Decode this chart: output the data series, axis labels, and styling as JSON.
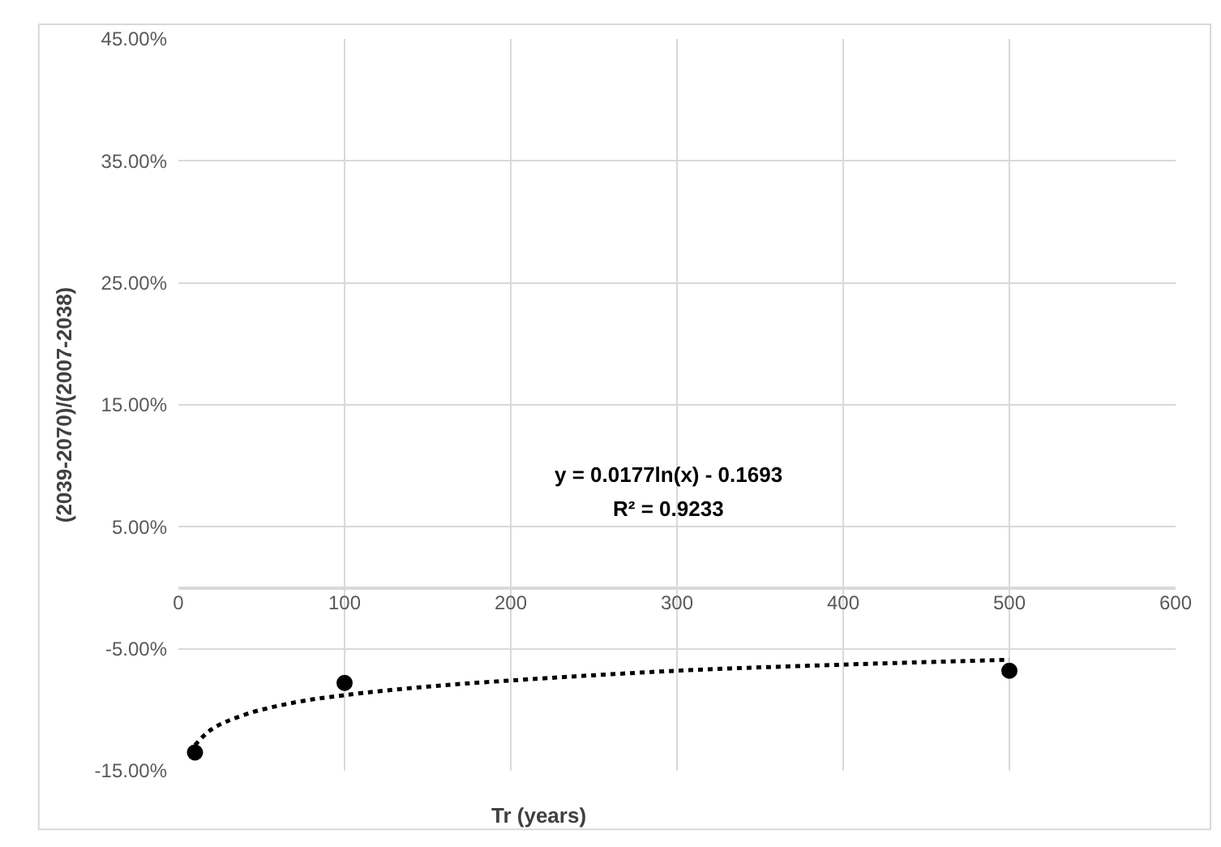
{
  "chart_data": {
    "type": "scatter",
    "xlabel": "Tr (years)",
    "ylabel": "(2039-2070)/(2007-2038)",
    "annotations": [
      "y = 0.0177ln(x) - 0.1693",
      "R² = 0.9233"
    ],
    "series": [
      {
        "color": "#000000",
        "marker": "circle",
        "x": [
          10,
          100,
          500
        ],
        "values": [
          -0.135,
          -0.078,
          -0.068
        ]
      },
      {
        "type": "line",
        "color": "#000000",
        "line_style": "dotted",
        "x": [
          10,
          20,
          40,
          70,
          100,
          150,
          200,
          300,
          400,
          500
        ],
        "values": [
          -0.129,
          -0.116,
          -0.104,
          -0.094,
          -0.088,
          -0.081,
          -0.076,
          -0.068,
          -0.063,
          -0.059
        ]
      }
    ],
    "xlim": [
      0,
      600
    ],
    "xticks": [
      0,
      100,
      200,
      300,
      400,
      500,
      600
    ],
    "ylim": [
      -0.15,
      0.45
    ],
    "yticks": [
      {
        "value": -0.15,
        "label": "-15.00%"
      },
      {
        "value": -0.05,
        "label": "-5.00%"
      },
      {
        "value": 0.05,
        "label": "5.00%"
      },
      {
        "value": 0.15,
        "label": "15.00%"
      },
      {
        "value": 0.25,
        "label": "25.00%"
      },
      {
        "value": 0.35,
        "label": "35.00%"
      },
      {
        "value": 0.45,
        "label": "45.00%"
      }
    ],
    "grid": true
  }
}
